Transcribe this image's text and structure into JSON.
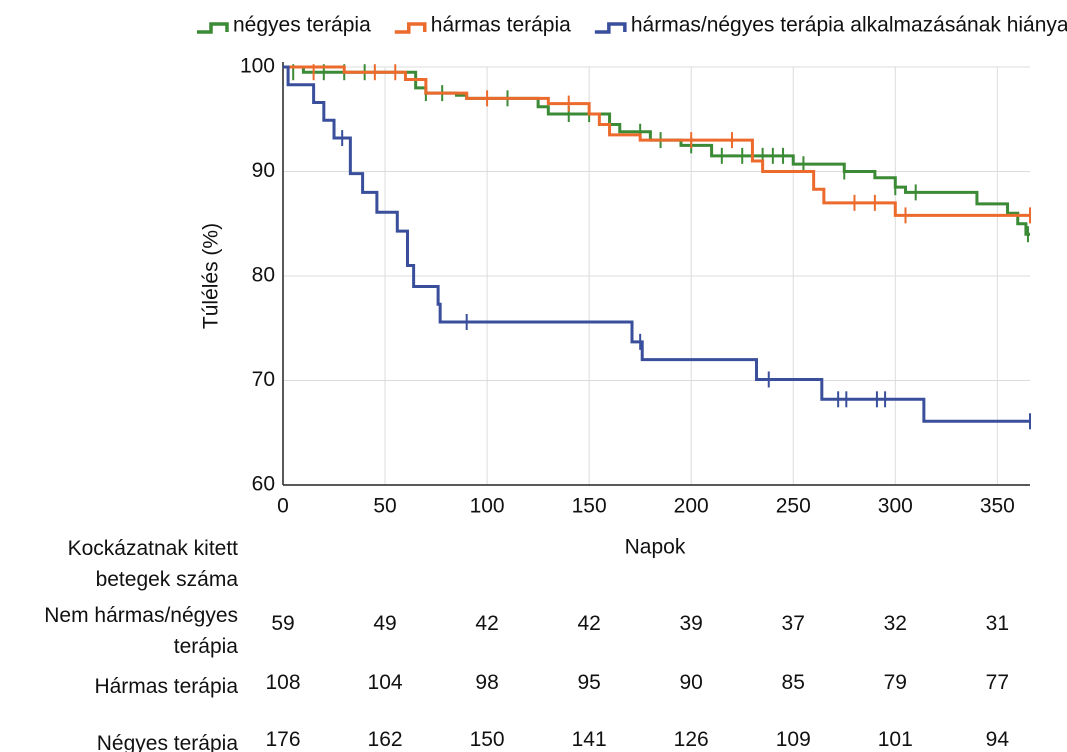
{
  "chart_data": {
    "type": "step",
    "x_label": "Napok",
    "y_label": "Túlélés (%)",
    "xlim": [
      0,
      366
    ],
    "ylim": [
      60,
      100
    ],
    "xticks": [
      0,
      50,
      100,
      150,
      200,
      250,
      300,
      350
    ],
    "yticks": [
      60,
      70,
      80,
      90,
      100
    ],
    "grid": true,
    "legend": "top",
    "series": [
      {
        "name": "négyes terápia",
        "color": "#3b8a35",
        "x": [
          0,
          10,
          65,
          70,
          85,
          90,
          125,
          130,
          160,
          165,
          180,
          195,
          210,
          250,
          275,
          290,
          300,
          305,
          340,
          355,
          360,
          364,
          366
        ],
        "values": [
          100,
          99.5,
          98.0,
          97.5,
          97.3,
          97.0,
          96.2,
          95.5,
          94.5,
          93.8,
          93.0,
          92.5,
          91.5,
          90.7,
          90.0,
          89.4,
          88.5,
          88.0,
          86.9,
          86.0,
          85.0,
          84.0,
          84.0
        ],
        "censor_x": [
          5,
          20,
          30,
          40,
          70,
          78,
          110,
          140,
          150,
          175,
          185,
          200,
          215,
          225,
          235,
          240,
          245,
          255,
          275,
          300,
          310,
          365
        ],
        "censor_values": [
          99.5,
          99.5,
          99.5,
          99.5,
          97.5,
          97.5,
          97.0,
          95.5,
          95.5,
          93.8,
          93.0,
          92.5,
          91.5,
          91.5,
          91.5,
          91.5,
          91.5,
          90.7,
          90.0,
          88.5,
          88.0,
          84.0
        ]
      },
      {
        "name": "hármas terápia",
        "color": "#ec6a2c",
        "x": [
          0,
          30,
          60,
          70,
          90,
          130,
          150,
          155,
          160,
          175,
          230,
          235,
          260,
          265,
          300,
          366
        ],
        "values": [
          100,
          99.5,
          98.8,
          97.5,
          97.0,
          96.5,
          95.5,
          94.5,
          93.5,
          93.0,
          91.0,
          90.0,
          88.3,
          87.0,
          85.8,
          85.8
        ],
        "censor_x": [
          15,
          45,
          55,
          100,
          140,
          200,
          220,
          280,
          290,
          305,
          366
        ],
        "censor_values": [
          99.5,
          99.5,
          99.5,
          97.0,
          96.5,
          93.0,
          93.0,
          87.0,
          87.0,
          85.8,
          85.8
        ]
      },
      {
        "name": "hármas/négyes terápia alkalmazásának hiánya",
        "color": "#3a4f9c",
        "x": [
          0,
          2.5,
          15,
          20,
          25,
          33,
          39,
          46,
          56,
          61,
          64,
          76,
          77,
          171,
          176,
          232,
          264,
          314,
          366
        ],
        "values": [
          100,
          98.3,
          96.6,
          94.9,
          93.2,
          89.8,
          88.0,
          86.1,
          84.3,
          81.0,
          79.0,
          77.3,
          75.6,
          73.7,
          72.0,
          70.1,
          68.2,
          66.1,
          66.1
        ],
        "censor_x": [
          29,
          90,
          175,
          238,
          272,
          276,
          291,
          295,
          366
        ],
        "censor_values": [
          93.2,
          75.6,
          73.7,
          70.1,
          68.2,
          68.2,
          68.2,
          68.2,
          66.1
        ]
      }
    ]
  },
  "risk_table": {
    "title": "Kockázatnak kitett betegek száma",
    "rows": [
      {
        "label": "Nem hármas/négyes terápia",
        "values": [
          59,
          49,
          42,
          42,
          39,
          37,
          32,
          31
        ]
      },
      {
        "label": "Hármas terápia",
        "values": [
          108,
          104,
          98,
          95,
          90,
          85,
          79,
          77
        ]
      },
      {
        "label": "Négyes terápia",
        "values": [
          176,
          162,
          150,
          141,
          126,
          109,
          101,
          94
        ]
      }
    ]
  }
}
